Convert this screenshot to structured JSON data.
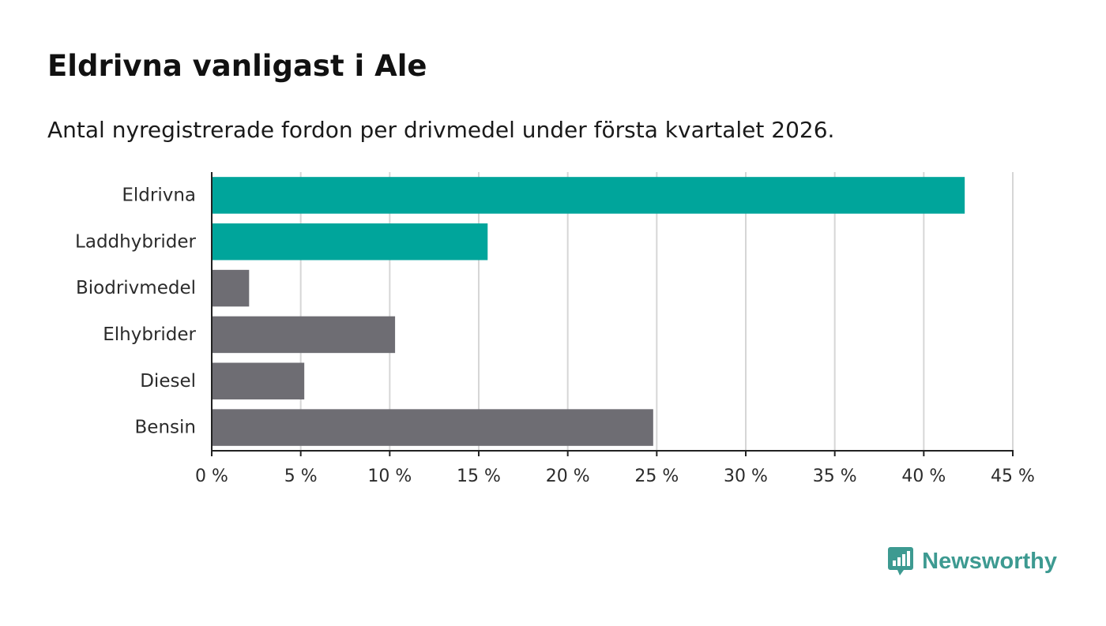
{
  "header": {
    "title": "Eldrivna vanligast i Ale",
    "subtitle": "Antal nyregistrerade fordon per drivmedel under första kvartalet 2026."
  },
  "brand": {
    "name": "Newsworthy",
    "color": "#3d9a91"
  },
  "colors": {
    "highlight": "#00a59b",
    "default": "#6e6d73",
    "grid": "#d6d6d6",
    "axis": "#222222"
  },
  "chart_data": {
    "type": "bar",
    "orientation": "horizontal",
    "title": "Eldrivna vanligast i Ale",
    "subtitle": "Antal nyregistrerade fordon per drivmedel under första kvartalet 2026.",
    "xlabel": "",
    "ylabel": "",
    "categories": [
      "Eldrivna",
      "Laddhybrider",
      "Biodrivmedel",
      "Elhybrider",
      "Diesel",
      "Bensin"
    ],
    "values": [
      42.3,
      15.5,
      2.1,
      10.3,
      5.2,
      24.8
    ],
    "highlight": [
      true,
      true,
      false,
      false,
      false,
      false
    ],
    "xlim": [
      0,
      45
    ],
    "xticks": [
      0,
      5,
      10,
      15,
      20,
      25,
      30,
      35,
      40,
      45
    ],
    "tick_suffix": " %",
    "grid": true
  }
}
